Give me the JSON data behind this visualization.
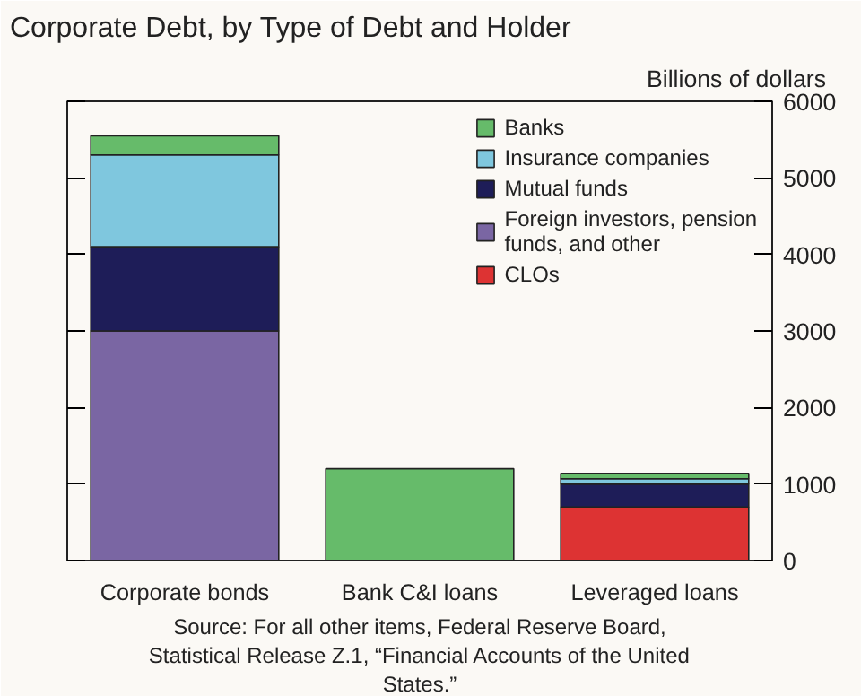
{
  "chart_data": {
    "type": "bar",
    "title": "Corporate Debt, by Type of Debt and Holder",
    "ylabel": "Billions of dollars",
    "categories": [
      "Corporate bonds",
      "Bank C&I loans",
      "Leveraged loans"
    ],
    "stacked": true,
    "series": [
      {
        "name": "CLOs",
        "color": "#dd3333",
        "values": [
          null,
          null,
          700
        ]
      },
      {
        "name": "Foreign investors, pension funds, and other",
        "color": "#7a66a3",
        "values": [
          3000,
          null,
          null
        ]
      },
      {
        "name": "Mutual funds",
        "color": "#1e1d58",
        "values": [
          1100,
          null,
          300
        ]
      },
      {
        "name": "Insurance companies",
        "color": "#7fc7de",
        "values": [
          1200,
          null,
          70
        ]
      },
      {
        "name": "Banks",
        "color": "#66bb6a",
        "values": [
          250,
          1200,
          70
        ]
      }
    ],
    "ylim": [
      0,
      6000
    ],
    "yticks": [
      0,
      1000,
      2000,
      3000,
      4000,
      5000,
      6000
    ],
    "tick_labels": "y",
    "grid": false,
    "legend": "top right",
    "annotations": [
      "Source: For all other items, Federal Reserve Board, Statistical Release Z.1, “Financial Accounts of the United States.”"
    ]
  }
}
